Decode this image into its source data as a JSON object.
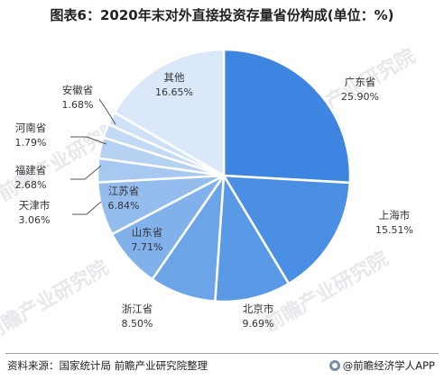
{
  "chart_data": {
    "type": "pie",
    "title": "图表6：2020年末对外直接投资存量省份构成(单位：%)",
    "slices": [
      {
        "label": "广东省",
        "value": 25.9,
        "value_text": "25.90%",
        "color": "#3d85e0"
      },
      {
        "label": "上海市",
        "value": 15.51,
        "value_text": "15.51%",
        "color": "#4a8fe3"
      },
      {
        "label": "北京市",
        "value": 9.69,
        "value_text": "9.69%",
        "color": "#5a99e5"
      },
      {
        "label": "浙江省",
        "value": 8.5,
        "value_text": "8.50%",
        "color": "#6ca4e8"
      },
      {
        "label": "山东省",
        "value": 7.71,
        "value_text": "7.71%",
        "color": "#80b1eb"
      },
      {
        "label": "江苏省",
        "value": 6.84,
        "value_text": "6.84%",
        "color": "#94bdee"
      },
      {
        "label": "天津市",
        "value": 3.06,
        "value_text": "3.06%",
        "color": "#a7c9f1"
      },
      {
        "label": "福建省",
        "value": 2.68,
        "value_text": "2.68%",
        "color": "#b6d2f3"
      },
      {
        "label": "河南省",
        "value": 1.79,
        "value_text": "1.79%",
        "color": "#c3daf5"
      },
      {
        "label": "安徽省",
        "value": 1.68,
        "value_text": "1.68%",
        "color": "#cfe1f7"
      },
      {
        "label": "其他",
        "value": 16.65,
        "value_text": "16.65%",
        "color": "#dbe8f9"
      }
    ]
  },
  "footer": {
    "source": "资料来源：国家统计局 前瞻产业研究院整理",
    "brand": "@前瞻经济学人APP"
  },
  "watermark": "前瞻产业研究院"
}
